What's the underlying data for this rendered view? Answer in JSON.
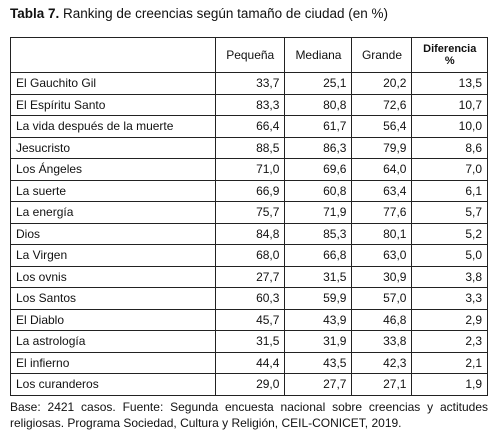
{
  "title": {
    "label": "Tabla 7.",
    "text": "Ranking de creencias según tamaño de ciudad (en %)"
  },
  "table": {
    "header": [
      "",
      "Pequeña",
      "Mediana",
      "Grande",
      "Diferencia\n%"
    ],
    "rows": [
      [
        "El Gauchito Gil",
        "33,7",
        "25,1",
        "20,2",
        "13,5"
      ],
      [
        "El Espíritu Santo",
        "83,3",
        "80,8",
        "72,6",
        "10,7"
      ],
      [
        "La vida después de la muerte",
        "66,4",
        "61,7",
        "56,4",
        "10,0"
      ],
      [
        "Jesucristo",
        "88,5",
        "86,3",
        "79,9",
        "8,6"
      ],
      [
        "Los Ángeles",
        "71,0",
        "69,6",
        "64,0",
        "7,0"
      ],
      [
        "La suerte",
        "66,9",
        "60,8",
        "63,4",
        "6,1"
      ],
      [
        "La energía",
        "75,7",
        "71,9",
        "77,6",
        "5,7"
      ],
      [
        "Dios",
        "84,8",
        "85,3",
        "80,1",
        "5,2"
      ],
      [
        "La Virgen",
        "68,0",
        "66,8",
        "63,0",
        "5,0"
      ],
      [
        "Los ovnis",
        "27,7",
        "31,5",
        "30,9",
        "3,8"
      ],
      [
        "Los Santos",
        "60,3",
        "59,9",
        "57,0",
        "3,3"
      ],
      [
        "El Diablo",
        "45,7",
        "43,9",
        "46,8",
        "2,9"
      ],
      [
        "La astrología",
        "31,5",
        "31,9",
        "33,8",
        "2,3"
      ],
      [
        "El infierno",
        "44,4",
        "43,5",
        "42,3",
        "2,1"
      ],
      [
        "Los curanderos",
        "29,0",
        "27,7",
        "27,1",
        "1,9"
      ]
    ]
  },
  "footnote": "Base: 2421 casos. Fuente: Segunda encuesta nacional sobre creencias y actitudes religiosas. Programa Sociedad, Cultura y Religión, CEIL-CONICET, 2019."
}
